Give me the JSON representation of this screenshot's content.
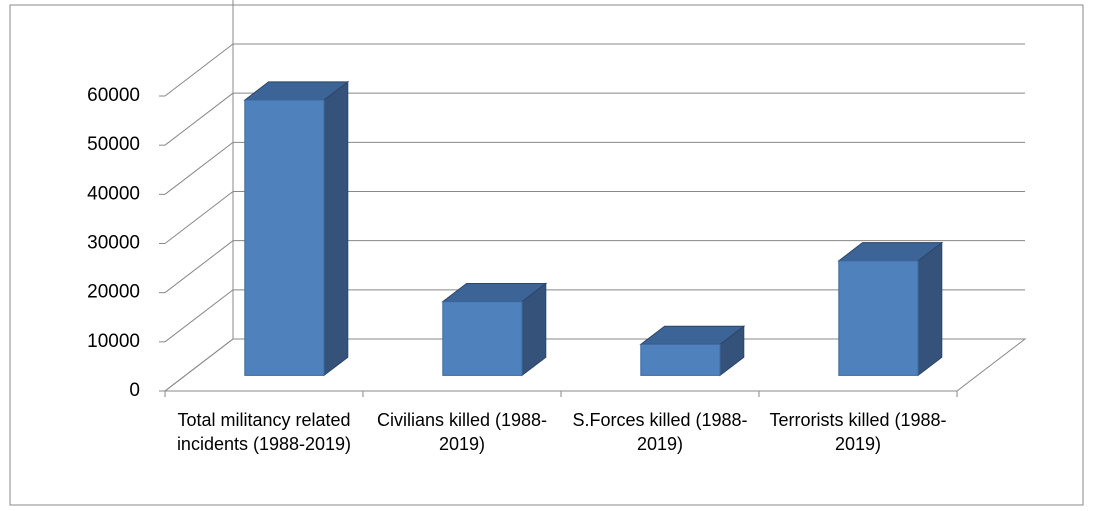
{
  "chart_data": {
    "type": "bar3d",
    "categories": [
      "Total militancy related incidents (1988-2019)",
      "Civilians killed (1988-2019)",
      "S.Forces killed (1988-2019)",
      "Terrorists killed (1988-2019)"
    ],
    "values": [
      56000,
      15000,
      6300,
      23300
    ],
    "color": "#4f81bd",
    "ylim": [
      0,
      60000
    ],
    "yticks": [
      0,
      10000,
      20000,
      30000,
      40000,
      50000,
      60000
    ],
    "grid": true
  }
}
